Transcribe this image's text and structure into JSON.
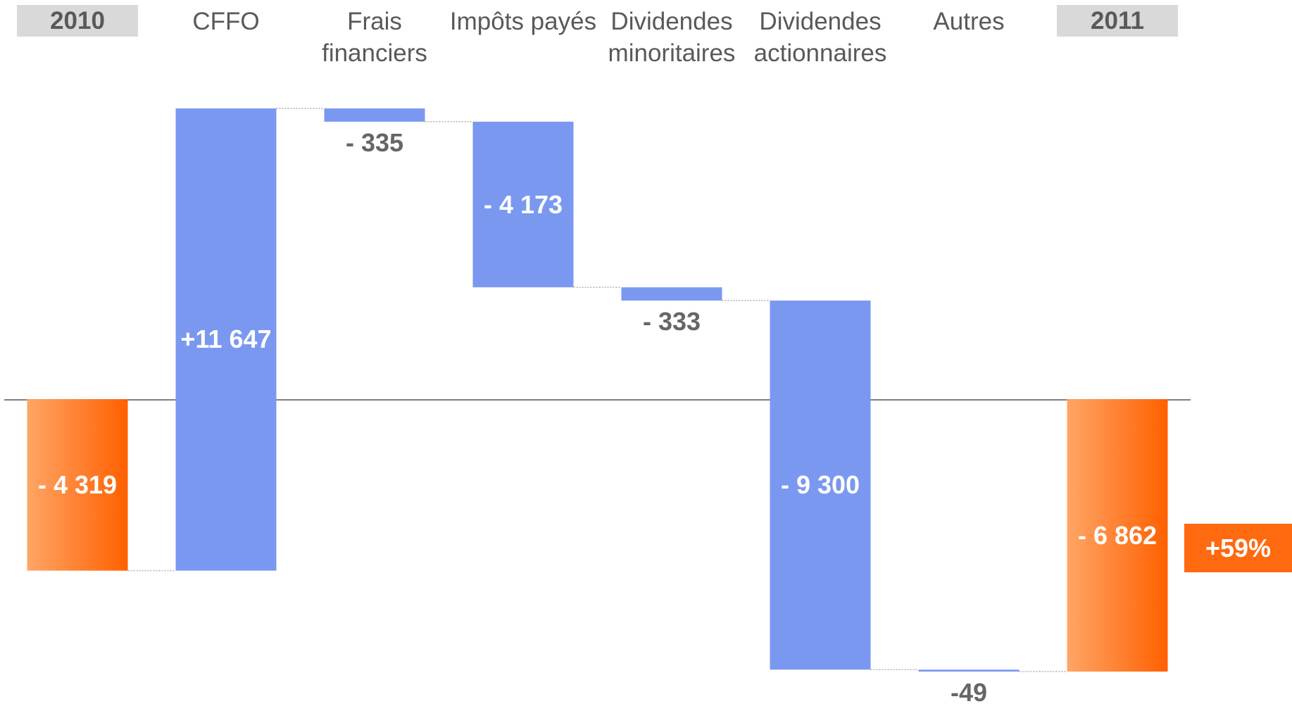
{
  "chart_data": {
    "type": "waterfall",
    "categories": [
      "2010",
      "CFFO",
      "Frais financiers",
      "Impôts payés",
      "Dividendes minoritaires",
      "Dividendes actionnaires",
      "Autres",
      "2011"
    ],
    "values": [
      -4319,
      11647,
      -335,
      -4173,
      -333,
      -9300,
      -49,
      -6862
    ],
    "value_labels": [
      "- 4 319",
      "+11 647",
      "- 335",
      "- 4 173",
      "- 333",
      "- 9 300",
      "-49",
      "- 6 862"
    ],
    "totals": [
      0,
      7
    ],
    "total_color": "#ff6a10",
    "change_color": "#7b98f0",
    "annotation": "+59%"
  }
}
